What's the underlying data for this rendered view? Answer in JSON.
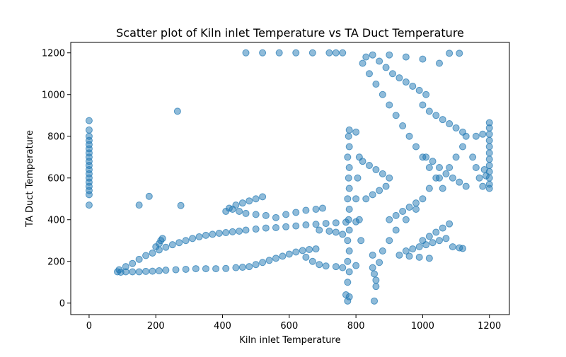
{
  "chart_data": {
    "type": "scatter",
    "title": "Scatter plot of Kiln inlet Temperature vs TA Duct Temperature",
    "xlabel": "Kiln inlet Temperature",
    "ylabel": "TA Duct Temperature",
    "xlim": [
      -55,
      1260
    ],
    "ylim": [
      -55,
      1250
    ],
    "xticks": [
      0,
      200,
      400,
      600,
      800,
      1000,
      1200
    ],
    "yticks": [
      0,
      200,
      400,
      600,
      800,
      1000,
      1200
    ],
    "grid": false,
    "legend": "none",
    "marker_color": "#1f77b4",
    "marker_alpha": 0.5,
    "points": [
      [
        0,
        470
      ],
      [
        0,
        520
      ],
      [
        0,
        540
      ],
      [
        0,
        560
      ],
      [
        0,
        580
      ],
      [
        0,
        600
      ],
      [
        0,
        620
      ],
      [
        0,
        640
      ],
      [
        0,
        660
      ],
      [
        0,
        680
      ],
      [
        0,
        700
      ],
      [
        0,
        720
      ],
      [
        0,
        740
      ],
      [
        0,
        760
      ],
      [
        0,
        780
      ],
      [
        0,
        800
      ],
      [
        0,
        830
      ],
      [
        0,
        875
      ],
      [
        150,
        470
      ],
      [
        180,
        512
      ],
      [
        265,
        920
      ],
      [
        275,
        468
      ],
      [
        85,
        150
      ],
      [
        95,
        148
      ],
      [
        110,
        150
      ],
      [
        130,
        150
      ],
      [
        150,
        150
      ],
      [
        170,
        152
      ],
      [
        190,
        153
      ],
      [
        210,
        155
      ],
      [
        230,
        158
      ],
      [
        260,
        160
      ],
      [
        290,
        162
      ],
      [
        320,
        165
      ],
      [
        350,
        165
      ],
      [
        380,
        165
      ],
      [
        410,
        166
      ],
      [
        440,
        170
      ],
      [
        460,
        172
      ],
      [
        480,
        175
      ],
      [
        500,
        185
      ],
      [
        520,
        195
      ],
      [
        540,
        205
      ],
      [
        560,
        215
      ],
      [
        580,
        225
      ],
      [
        600,
        235
      ],
      [
        620,
        245
      ],
      [
        640,
        252
      ],
      [
        660,
        257
      ],
      [
        680,
        260
      ],
      [
        90,
        160
      ],
      [
        110,
        175
      ],
      [
        130,
        190
      ],
      [
        150,
        210
      ],
      [
        170,
        228
      ],
      [
        190,
        240
      ],
      [
        210,
        255
      ],
      [
        230,
        268
      ],
      [
        250,
        280
      ],
      [
        270,
        290
      ],
      [
        290,
        300
      ],
      [
        310,
        310
      ],
      [
        330,
        318
      ],
      [
        350,
        325
      ],
      [
        370,
        330
      ],
      [
        390,
        335
      ],
      [
        410,
        338
      ],
      [
        430,
        342
      ],
      [
        450,
        345
      ],
      [
        470,
        350
      ],
      [
        500,
        355
      ],
      [
        530,
        360
      ],
      [
        560,
        362
      ],
      [
        590,
        366
      ],
      [
        620,
        370
      ],
      [
        650,
        375
      ],
      [
        680,
        378
      ],
      [
        710,
        382
      ],
      [
        740,
        385
      ],
      [
        770,
        388
      ],
      [
        800,
        390
      ],
      [
        200,
        270
      ],
      [
        210,
        285
      ],
      [
        215,
        300
      ],
      [
        220,
        310
      ],
      [
        410,
        440
      ],
      [
        420,
        455
      ],
      [
        440,
        470
      ],
      [
        460,
        480
      ],
      [
        480,
        490
      ],
      [
        500,
        500
      ],
      [
        520,
        510
      ],
      [
        430,
        450
      ],
      [
        450,
        440
      ],
      [
        470,
        430
      ],
      [
        500,
        425
      ],
      [
        530,
        420
      ],
      [
        560,
        410
      ],
      [
        590,
        425
      ],
      [
        620,
        435
      ],
      [
        650,
        445
      ],
      [
        680,
        450
      ],
      [
        700,
        455
      ],
      [
        690,
        350
      ],
      [
        720,
        345
      ],
      [
        740,
        340
      ],
      [
        760,
        330
      ],
      [
        650,
        220
      ],
      [
        670,
        200
      ],
      [
        690,
        185
      ],
      [
        710,
        178
      ],
      [
        740,
        175
      ],
      [
        760,
        170
      ],
      [
        470,
        1200
      ],
      [
        520,
        1200
      ],
      [
        570,
        1200
      ],
      [
        620,
        1200
      ],
      [
        670,
        1200
      ],
      [
        720,
        1200
      ],
      [
        740,
        1200
      ],
      [
        760,
        1200
      ],
      [
        1080,
        1198
      ],
      [
        1110,
        1198
      ],
      [
        770,
        40
      ],
      [
        775,
        10
      ],
      [
        780,
        30
      ],
      [
        775,
        100
      ],
      [
        780,
        150
      ],
      [
        775,
        200
      ],
      [
        780,
        250
      ],
      [
        775,
        300
      ],
      [
        780,
        350
      ],
      [
        778,
        400
      ],
      [
        780,
        450
      ],
      [
        775,
        500
      ],
      [
        780,
        550
      ],
      [
        778,
        600
      ],
      [
        780,
        650
      ],
      [
        775,
        700
      ],
      [
        780,
        750
      ],
      [
        778,
        800
      ],
      [
        780,
        830
      ],
      [
        800,
        820
      ],
      [
        810,
        700
      ],
      [
        805,
        600
      ],
      [
        800,
        500
      ],
      [
        810,
        400
      ],
      [
        815,
        300
      ],
      [
        800,
        180
      ],
      [
        850,
        170
      ],
      [
        855,
        140
      ],
      [
        860,
        110
      ],
      [
        860,
        80
      ],
      [
        855,
        10
      ],
      [
        870,
        195
      ],
      [
        850,
        230
      ],
      [
        880,
        250
      ],
      [
        900,
        300
      ],
      [
        920,
        350
      ],
      [
        950,
        400
      ],
      [
        980,
        450
      ],
      [
        1000,
        500
      ],
      [
        1020,
        550
      ],
      [
        1050,
        600
      ],
      [
        1080,
        650
      ],
      [
        1100,
        700
      ],
      [
        1120,
        750
      ],
      [
        820,
        1150
      ],
      [
        840,
        1100
      ],
      [
        860,
        1050
      ],
      [
        880,
        1000
      ],
      [
        900,
        950
      ],
      [
        920,
        900
      ],
      [
        940,
        850
      ],
      [
        960,
        800
      ],
      [
        980,
        750
      ],
      [
        1000,
        700
      ],
      [
        1020,
        650
      ],
      [
        1040,
        600
      ],
      [
        1060,
        550
      ],
      [
        830,
        1180
      ],
      [
        850,
        1190
      ],
      [
        870,
        1160
      ],
      [
        890,
        1130
      ],
      [
        910,
        1100
      ],
      [
        930,
        1080
      ],
      [
        950,
        1060
      ],
      [
        970,
        1040
      ],
      [
        990,
        1020
      ],
      [
        1010,
        1000
      ],
      [
        900,
        1190
      ],
      [
        950,
        1180
      ],
      [
        1000,
        1170
      ],
      [
        1050,
        1150
      ],
      [
        1000,
        950
      ],
      [
        1020,
        920
      ],
      [
        1040,
        900
      ],
      [
        1060,
        880
      ],
      [
        1080,
        860
      ],
      [
        1100,
        840
      ],
      [
        1120,
        820
      ],
      [
        1130,
        800
      ],
      [
        1010,
        700
      ],
      [
        1030,
        680
      ],
      [
        1050,
        650
      ],
      [
        1070,
        620
      ],
      [
        1090,
        600
      ],
      [
        1110,
        580
      ],
      [
        1130,
        560
      ],
      [
        900,
        600
      ],
      [
        880,
        620
      ],
      [
        860,
        640
      ],
      [
        840,
        660
      ],
      [
        820,
        680
      ],
      [
        830,
        500
      ],
      [
        850,
        520
      ],
      [
        870,
        540
      ],
      [
        890,
        560
      ],
      [
        900,
        400
      ],
      [
        920,
        420
      ],
      [
        940,
        440
      ],
      [
        960,
        460
      ],
      [
        980,
        480
      ],
      [
        1000,
        300
      ],
      [
        1020,
        320
      ],
      [
        1040,
        340
      ],
      [
        1060,
        360
      ],
      [
        1080,
        380
      ],
      [
        950,
        250
      ],
      [
        970,
        260
      ],
      [
        990,
        270
      ],
      [
        1010,
        280
      ],
      [
        1030,
        290
      ],
      [
        1050,
        300
      ],
      [
        1070,
        310
      ],
      [
        1090,
        270
      ],
      [
        1110,
        265
      ],
      [
        1120,
        262
      ],
      [
        930,
        230
      ],
      [
        960,
        225
      ],
      [
        990,
        220
      ],
      [
        1020,
        215
      ],
      [
        1150,
        700
      ],
      [
        1160,
        650
      ],
      [
        1170,
        600
      ],
      [
        1180,
        560
      ],
      [
        1160,
        800
      ],
      [
        1180,
        810
      ],
      [
        1185,
        640
      ],
      [
        1190,
        610
      ],
      [
        1200,
        550
      ],
      [
        1200,
        570
      ],
      [
        1200,
        600
      ],
      [
        1200,
        630
      ],
      [
        1200,
        660
      ],
      [
        1200,
        690
      ],
      [
        1200,
        720
      ],
      [
        1200,
        750
      ],
      [
        1200,
        780
      ],
      [
        1200,
        810
      ],
      [
        1200,
        840
      ],
      [
        1200,
        865
      ]
    ]
  }
}
